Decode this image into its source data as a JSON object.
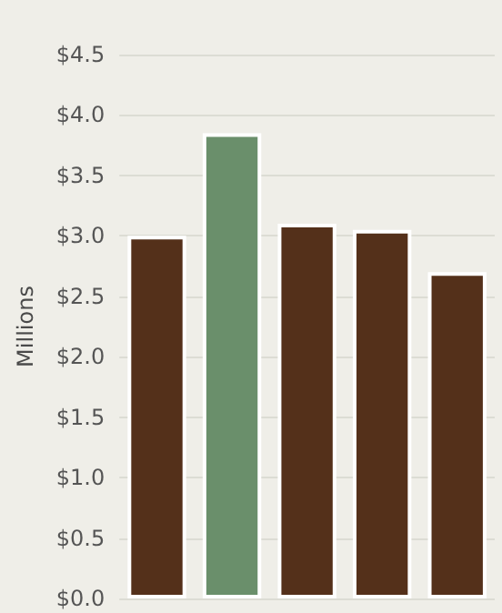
{
  "chart_data": {
    "type": "bar",
    "ylabel": "Millions",
    "categories": [
      null,
      null,
      null,
      null,
      null
    ],
    "values": [
      3.0,
      3.85,
      3.1,
      3.05,
      2.7
    ],
    "colors": [
      "#54301a",
      "#6a8f6b",
      "#54301a",
      "#54301a",
      "#54301a"
    ],
    "ylim": [
      0,
      4.5
    ],
    "yticks": [
      {
        "value": 0,
        "label": "$0.0"
      },
      {
        "value": 0.5,
        "label": "$0.5"
      },
      {
        "value": 1,
        "label": "$1.0"
      },
      {
        "value": 1.5,
        "label": "$1.5"
      },
      {
        "value": 2,
        "label": "$2.0"
      },
      {
        "value": 2.5,
        "label": "$2.5"
      },
      {
        "value": 3,
        "label": "$3.0"
      },
      {
        "value": 3.5,
        "label": "$3.5"
      },
      {
        "value": 4,
        "label": "$4.0"
      },
      {
        "value": 4.5,
        "label": "$4.5"
      }
    ],
    "grid": "y"
  }
}
